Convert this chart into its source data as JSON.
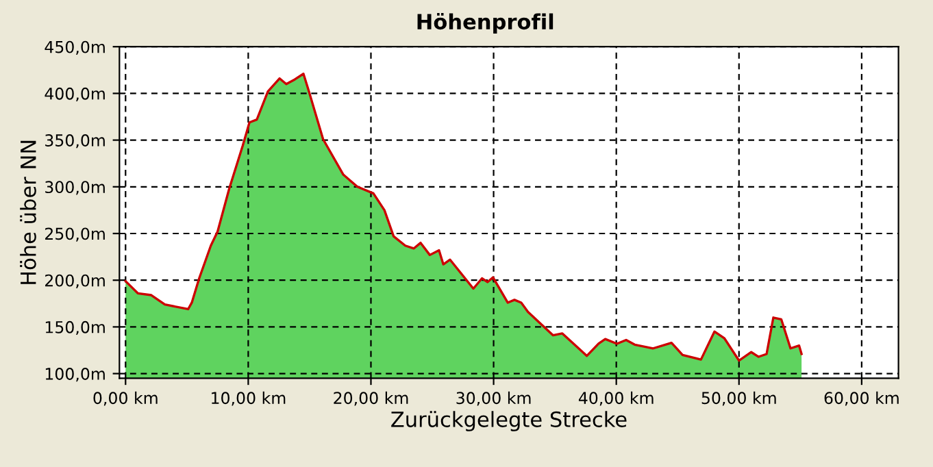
{
  "chart_data": {
    "type": "area",
    "title": "Höhenprofil",
    "xlabel": "Zurückgelegte Strecke",
    "ylabel": "Höhe über NN",
    "x": [
      0,
      1.0,
      2.1,
      3.2,
      5.1,
      5.4,
      6.0,
      6.95,
      7.5,
      8.45,
      9.55,
      10.1,
      10.7,
      11.6,
      12.55,
      13.1,
      13.8,
      14.5,
      14.95,
      16.1,
      17.75,
      18.9,
      20.2,
      21.1,
      21.85,
      22.8,
      23.5,
      24.05,
      24.8,
      25.55,
      25.9,
      26.45,
      28.35,
      29.05,
      29.5,
      29.95,
      31.15,
      31.7,
      32.25,
      32.8,
      34.85,
      35.6,
      37.6,
      38.55,
      39.1,
      40.05,
      40.8,
      41.5,
      43.0,
      44.5,
      45.4,
      46.9,
      48.0,
      48.8,
      50.0,
      51.0,
      51.6,
      52.25,
      52.8,
      53.45,
      54.2,
      54.9,
      55.1
    ],
    "series": [
      {
        "color": "#5fd35f",
        "values": [
          199,
          186,
          184,
          174,
          169,
          176,
          202,
          237,
          252,
          298,
          344,
          369,
          372,
          402,
          416,
          410,
          415,
          421,
          402,
          351,
          313,
          300,
          293,
          275,
          247,
          237,
          234,
          240,
          227,
          232,
          217,
          222,
          191,
          202,
          198,
          203,
          176,
          179,
          176,
          166,
          141,
          143,
          119,
          132,
          137,
          132,
          136,
          131,
          127,
          133,
          120,
          115,
          145,
          138,
          114,
          123,
          118,
          121,
          160,
          158,
          127,
          130,
          121
        ]
      },
      {
        "type": "line",
        "color": "#cc0000",
        "values": [
          199,
          186,
          184,
          174,
          169,
          176,
          202,
          237,
          252,
          298,
          344,
          369,
          372,
          402,
          416,
          410,
          415,
          421,
          402,
          351,
          313,
          300,
          293,
          275,
          247,
          237,
          234,
          240,
          227,
          232,
          217,
          222,
          191,
          202,
          198,
          203,
          176,
          179,
          176,
          166,
          141,
          143,
          119,
          132,
          137,
          132,
          136,
          131,
          127,
          133,
          120,
          115,
          145,
          138,
          114,
          123,
          118,
          121,
          160,
          158,
          127,
          130,
          121
        ]
      }
    ],
    "xlim": [
      -0.5,
      63
    ],
    "ylim": [
      95,
      450
    ],
    "xticks": [
      {
        "value": 0,
        "label": "0,00 km"
      },
      {
        "value": 10,
        "label": "10,00 km"
      },
      {
        "value": 20,
        "label": "20,00 km"
      },
      {
        "value": 30,
        "label": "30,00 km"
      },
      {
        "value": 40,
        "label": "40,00 km"
      },
      {
        "value": 50,
        "label": "50,00 km"
      },
      {
        "value": 60,
        "label": "60,00 km"
      }
    ],
    "yticks": [
      {
        "value": 100,
        "label": "100,0m"
      },
      {
        "value": 150,
        "label": "150,0m"
      },
      {
        "value": 200,
        "label": "200,0m"
      },
      {
        "value": 250,
        "label": "250,0m"
      },
      {
        "value": 300,
        "label": "300,0m"
      },
      {
        "value": 350,
        "label": "350,0m"
      },
      {
        "value": 400,
        "label": "400,0m"
      },
      {
        "value": 450,
        "label": "450,0m"
      }
    ],
    "grid": true
  }
}
